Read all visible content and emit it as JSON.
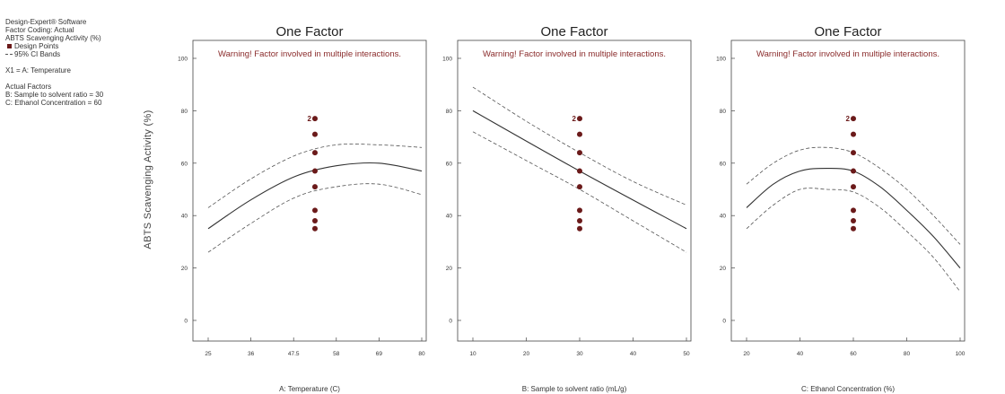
{
  "legend": {
    "software": "Design-Expert® Software",
    "coding": "Factor Coding: Actual",
    "response": "ABTS Scavenging Activity (%)",
    "design_points": "Design Points",
    "ci_bands": "95% CI Bands",
    "x1": "X1 = A: Temperature",
    "actual_factors": "Actual Factors",
    "factor_b": "B: Sample to solvent ratio = 30",
    "factor_c": "C: Ethanol Concentration = 60"
  },
  "y_axis_label": "ABTS Scavenging Activity (%)",
  "colors": {
    "points": "#6b1a1a",
    "warning": "#8a2b2b",
    "curve": "#333333"
  },
  "chart_data": [
    {
      "type": "line",
      "title": "One Factor",
      "warning": "Warning! Factor involved in multiple interactions.",
      "xlabel": "A: Temperature (C)",
      "ylabel": "ABTS Scavenging Activity (%)",
      "xlim": [
        25,
        80
      ],
      "ylim": [
        0,
        100
      ],
      "x_ticks": [
        "25",
        "36",
        "47.5",
        "58",
        "69",
        "80"
      ],
      "y_ticks": [
        "100",
        "80",
        "60",
        "40",
        "20",
        "0"
      ],
      "series": [
        {
          "role": "fit",
          "x": [
            25,
            36,
            47.5,
            58,
            69,
            80
          ],
          "y": [
            35,
            46,
            55,
            59,
            60,
            57
          ]
        },
        {
          "role": "ci-upper",
          "x": [
            25,
            36,
            47.5,
            58,
            69,
            80
          ],
          "y": [
            43,
            54,
            63,
            67,
            67,
            66
          ]
        },
        {
          "role": "ci-lower",
          "x": [
            25,
            36,
            47.5,
            58,
            69,
            80
          ],
          "y": [
            26,
            37,
            47,
            51,
            52,
            48
          ]
        }
      ],
      "points": {
        "x": 52.5,
        "y": [
          77,
          71,
          64,
          57,
          51,
          42,
          38,
          35
        ],
        "count_label": "2"
      }
    },
    {
      "type": "line",
      "title": "One Factor",
      "warning": "Warning! Factor involved in multiple interactions.",
      "xlabel": "B: Sample to solvent ratio (mL/g)",
      "ylabel": "ABTS Scavenging Activity (%)",
      "xlim": [
        10,
        50
      ],
      "ylim": [
        0,
        100
      ],
      "x_ticks": [
        "10",
        "20",
        "30",
        "40",
        "50"
      ],
      "y_ticks": [
        "100",
        "80",
        "60",
        "40",
        "20",
        "0"
      ],
      "series": [
        {
          "role": "fit",
          "x": [
            10,
            30,
            50
          ],
          "y": [
            80,
            57,
            35
          ]
        },
        {
          "role": "ci-upper",
          "x": [
            10,
            20,
            30,
            40,
            50
          ],
          "y": [
            89,
            76,
            64,
            53,
            44
          ]
        },
        {
          "role": "ci-lower",
          "x": [
            10,
            20,
            30,
            40,
            50
          ],
          "y": [
            72,
            61,
            50,
            38,
            26
          ]
        }
      ],
      "points": {
        "x": 30,
        "y": [
          77,
          71,
          64,
          57,
          51,
          42,
          38,
          35
        ],
        "count_label": "2"
      }
    },
    {
      "type": "line",
      "title": "One Factor",
      "warning": "Warning! Factor involved in multiple interactions.",
      "xlabel": "C: Ethanol Concentration (%)",
      "ylabel": "ABTS Scavenging Activity (%)",
      "xlim": [
        20,
        100
      ],
      "ylim": [
        0,
        100
      ],
      "x_ticks": [
        "20",
        "40",
        "60",
        "80",
        "100"
      ],
      "y_ticks": [
        "100",
        "80",
        "60",
        "40",
        "20",
        "0"
      ],
      "series": [
        {
          "role": "fit",
          "x": [
            20,
            30,
            40,
            50,
            60,
            70,
            80,
            90,
            100
          ],
          "y": [
            43,
            52,
            57,
            58,
            57,
            51,
            42,
            32,
            20
          ]
        },
        {
          "role": "ci-upper",
          "x": [
            20,
            30,
            40,
            50,
            60,
            70,
            80,
            90,
            100
          ],
          "y": [
            52,
            60,
            65,
            66,
            64,
            58,
            50,
            40,
            29
          ]
        },
        {
          "role": "ci-lower",
          "x": [
            20,
            30,
            40,
            50,
            60,
            70,
            80,
            90,
            100
          ],
          "y": [
            35,
            44,
            50,
            50,
            49,
            43,
            34,
            24,
            11
          ]
        }
      ],
      "points": {
        "x": 60,
        "y": [
          77,
          71,
          64,
          57,
          51,
          42,
          38,
          35
        ],
        "count_label": "2"
      }
    }
  ]
}
